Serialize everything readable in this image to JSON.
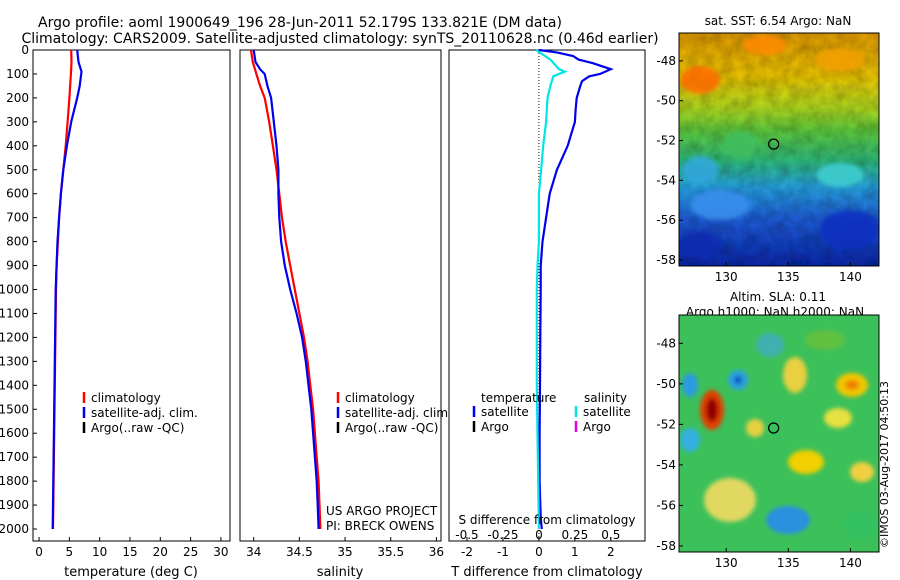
{
  "header": {
    "line1": "Argo profile: aoml 1900649_196 28-Jun-2011 52.179S 133.821E (DM data)",
    "line2": "Climatology: CARS2009. Satellite-adjusted climatology: synTS_20110628.nc (0.46d earlier)"
  },
  "credit": {
    "project": "US ARGO PROJECT",
    "pi": "PI: BRECK OWENS",
    "stamp": "©IMOS 03-Aug-2017 04:50:13"
  },
  "colors": {
    "climatology": "#ff0000",
    "satellite": "#0000ee",
    "argo": "#000000",
    "sal_satellite": "#00e5e5",
    "sal_argo": "#e000e0"
  },
  "chart_data": [
    {
      "type": "line",
      "panel": "temperature",
      "xlabel": "temperature (deg C)",
      "ylabel": "",
      "xlim": [
        -1,
        31.5
      ],
      "ylim": [
        2050,
        0
      ],
      "xticks": [
        0,
        5,
        10,
        15,
        20,
        25,
        30
      ],
      "yticks": [
        0,
        100,
        200,
        300,
        400,
        500,
        600,
        700,
        800,
        900,
        1000,
        1100,
        1200,
        1300,
        1400,
        1500,
        1600,
        1700,
        1800,
        1900,
        2000
      ],
      "legend": {
        "placement": "lower-middle",
        "entries": [
          {
            "label": "climatology",
            "color": "#ff0000"
          },
          {
            "label": "satellite-adj. clim.",
            "color": "#0000ee"
          },
          {
            "label": "Argo(..raw -QC)",
            "color": "#000000"
          }
        ]
      },
      "series": [
        {
          "name": "climatology",
          "color": "#ff0000",
          "points": [
            [
              5.3,
              0
            ],
            [
              5.35,
              50
            ],
            [
              5.25,
              100
            ],
            [
              5.0,
              200
            ],
            [
              4.7,
              300
            ],
            [
              4.4,
              400
            ],
            [
              4.0,
              500
            ],
            [
              3.6,
              600
            ],
            [
              3.3,
              700
            ],
            [
              3.1,
              800
            ],
            [
              2.9,
              900
            ],
            [
              2.8,
              1000
            ],
            [
              2.7,
              1200
            ],
            [
              2.6,
              1400
            ],
            [
              2.5,
              1600
            ],
            [
              2.4,
              1800
            ],
            [
              2.3,
              2000
            ]
          ]
        },
        {
          "name": "satellite-adj. clim.",
          "color": "#0000ee",
          "points": [
            [
              6.3,
              0
            ],
            [
              6.5,
              50
            ],
            [
              7.0,
              90
            ],
            [
              6.7,
              150
            ],
            [
              6.3,
              200
            ],
            [
              5.8,
              250
            ],
            [
              5.3,
              300
            ],
            [
              4.6,
              400
            ],
            [
              4.0,
              500
            ],
            [
              3.6,
              600
            ],
            [
              3.3,
              700
            ],
            [
              3.05,
              800
            ],
            [
              2.9,
              900
            ],
            [
              2.75,
              1000
            ],
            [
              2.65,
              1200
            ],
            [
              2.55,
              1400
            ],
            [
              2.45,
              1600
            ],
            [
              2.35,
              1800
            ],
            [
              2.25,
              2000
            ]
          ]
        }
      ]
    },
    {
      "type": "line",
      "panel": "salinity",
      "xlabel": "salinity",
      "ylabel": "",
      "xlim": [
        33.85,
        36.05
      ],
      "ylim": [
        2050,
        0
      ],
      "xticks": [
        34,
        34.5,
        35,
        35.5,
        36
      ],
      "xtick_labels": [
        "34",
        "34.5",
        "35",
        "35.5",
        "36"
      ],
      "legend": {
        "placement": "lower-right",
        "entries": [
          {
            "label": "climatology",
            "color": "#ff0000"
          },
          {
            "label": "satellite-adj. clim.",
            "color": "#0000ee"
          },
          {
            "label": "Argo(..raw -QC)",
            "color": "#000000"
          }
        ]
      },
      "series": [
        {
          "name": "climatology",
          "color": "#ff0000",
          "points": [
            [
              33.97,
              0
            ],
            [
              33.99,
              50
            ],
            [
              34.03,
              100
            ],
            [
              34.07,
              150
            ],
            [
              34.12,
              200
            ],
            [
              34.17,
              300
            ],
            [
              34.21,
              400
            ],
            [
              34.25,
              500
            ],
            [
              34.28,
              600
            ],
            [
              34.31,
              700
            ],
            [
              34.35,
              800
            ],
            [
              34.4,
              900
            ],
            [
              34.45,
              1000
            ],
            [
              34.5,
              1100
            ],
            [
              34.55,
              1200
            ],
            [
              34.59,
              1300
            ],
            [
              34.62,
              1400
            ],
            [
              34.65,
              1500
            ],
            [
              34.67,
              1600
            ],
            [
              34.69,
              1700
            ],
            [
              34.71,
              1800
            ],
            [
              34.72,
              1900
            ],
            [
              34.73,
              2000
            ]
          ]
        },
        {
          "name": "satellite-adj. clim.",
          "color": "#0000ee",
          "points": [
            [
              34.0,
              0
            ],
            [
              34.02,
              50
            ],
            [
              34.07,
              80
            ],
            [
              34.12,
              100
            ],
            [
              34.15,
              150
            ],
            [
              34.19,
              200
            ],
            [
              34.22,
              300
            ],
            [
              34.25,
              400
            ],
            [
              34.27,
              500
            ],
            [
              34.27,
              600
            ],
            [
              34.28,
              700
            ],
            [
              34.3,
              800
            ],
            [
              34.34,
              900
            ],
            [
              34.4,
              1000
            ],
            [
              34.47,
              1100
            ],
            [
              34.53,
              1200
            ],
            [
              34.57,
              1300
            ],
            [
              34.6,
              1400
            ],
            [
              34.63,
              1500
            ],
            [
              34.65,
              1600
            ],
            [
              34.67,
              1700
            ],
            [
              34.69,
              1800
            ],
            [
              34.7,
              1900
            ],
            [
              34.71,
              2000
            ]
          ]
        }
      ]
    },
    {
      "type": "line",
      "panel": "difference",
      "xlabel": "T difference from climatology",
      "xlabel_top": "S difference from climatology",
      "xlim": [
        -2.5,
        2.95
      ],
      "ylim": [
        2050,
        0
      ],
      "xticks": [
        -2,
        -1,
        0,
        1,
        2
      ],
      "xticks_s": [
        -0.5,
        -0.25,
        0,
        0.25,
        0.5
      ],
      "xtick_labels_s": [
        "-0.5",
        "-0.25",
        "0",
        "0.25",
        "0.5"
      ],
      "legend": {
        "placement": "lower-middle",
        "temperature_title": "temperature",
        "salinity_title": "salinity",
        "entries": [
          {
            "label": "satellite",
            "color": "#0000ee",
            "group": "temperature"
          },
          {
            "label": "Argo",
            "color": "#000000",
            "group": "temperature"
          },
          {
            "label": "satellite",
            "color": "#00e5e5",
            "group": "salinity"
          },
          {
            "label": "Argo",
            "color": "#e000e0",
            "group": "salinity"
          }
        ]
      },
      "series": [
        {
          "name": "temperature satellite",
          "color": "#0000ee",
          "points": [
            [
              0.0,
              0
            ],
            [
              0.5,
              10
            ],
            [
              0.95,
              25
            ],
            [
              1.1,
              40
            ],
            [
              1.5,
              55
            ],
            [
              2.0,
              80
            ],
            [
              1.7,
              100
            ],
            [
              1.4,
              110
            ],
            [
              1.2,
              130
            ],
            [
              1.15,
              150
            ],
            [
              1.05,
              200
            ],
            [
              1.02,
              250
            ],
            [
              1.0,
              300
            ],
            [
              0.9,
              350
            ],
            [
              0.8,
              400
            ],
            [
              0.5,
              500
            ],
            [
              0.3,
              600
            ],
            [
              0.2,
              700
            ],
            [
              0.1,
              800
            ],
            [
              0.05,
              900
            ],
            [
              0.05,
              1000
            ],
            [
              0.04,
              1200
            ],
            [
              0.03,
              1400
            ],
            [
              0.02,
              1600
            ],
            [
              0.02,
              1800
            ],
            [
              0.05,
              1950
            ],
            [
              0.08,
              2000
            ]
          ]
        },
        {
          "name": "salinity satellite",
          "color": "#00e5e5",
          "points": [
            [
              -0.02,
              0
            ],
            [
              0.08,
              40
            ],
            [
              0.14,
              80
            ],
            [
              0.18,
              90
            ],
            [
              0.1,
              110
            ],
            [
              0.08,
              150
            ],
            [
              0.06,
              200
            ],
            [
              0.05,
              300
            ],
            [
              0.03,
              400
            ],
            [
              0.015,
              500
            ],
            [
              0.0,
              600
            ],
            [
              0.0,
              800
            ],
            [
              -0.01,
              900
            ],
            [
              -0.015,
              1000
            ],
            [
              -0.015,
              1200
            ],
            [
              -0.015,
              1400
            ],
            [
              -0.01,
              1600
            ],
            [
              -0.005,
              1800
            ],
            [
              0.0,
              2000
            ]
          ]
        }
      ]
    },
    {
      "type": "heatmap",
      "panel": "sst-map",
      "title": "sat. SST: 6.54  Argo: NaN",
      "xticks": [
        130,
        135,
        140
      ],
      "yticks": [
        -48,
        -50,
        -52,
        -54,
        -56,
        -58
      ],
      "xlim": [
        126.2,
        142.3
      ],
      "ylim": [
        -58.3,
        -46.6
      ],
      "marker": {
        "lon": 133.821,
        "lat": -52.179
      }
    },
    {
      "type": "heatmap",
      "panel": "sla-map",
      "title": "Altim. SLA: 0.11",
      "subtitle": "Argo h1000: NaN h2000: NaN",
      "xticks": [
        130,
        135,
        140
      ],
      "yticks": [
        -48,
        -50,
        -52,
        -54,
        -56,
        -58
      ],
      "xlim": [
        126.2,
        142.3
      ],
      "ylim": [
        -58.3,
        -46.6
      ],
      "marker": {
        "lon": 133.821,
        "lat": -52.179
      }
    }
  ]
}
